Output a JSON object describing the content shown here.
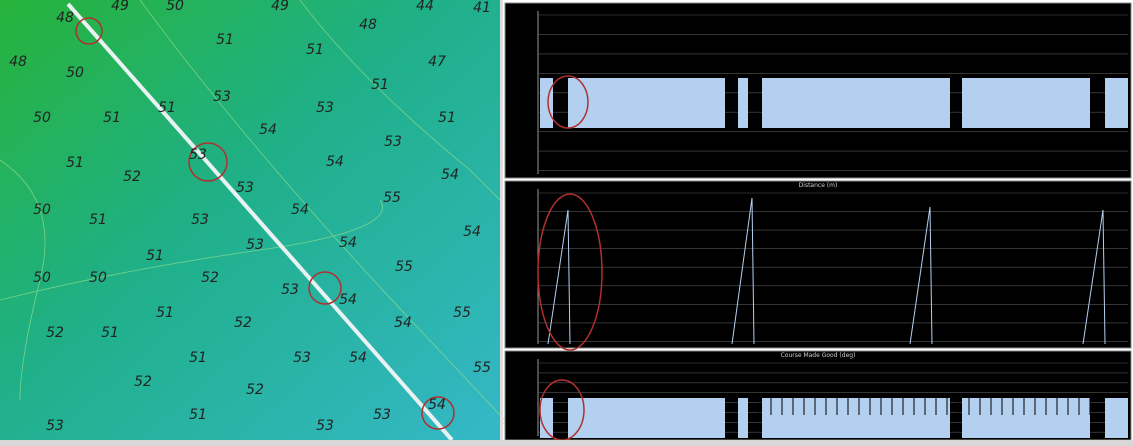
{
  "map": {
    "soundings": [
      "48",
      "49",
      "50",
      "49",
      "48",
      "44",
      "41",
      "48",
      "50",
      "51",
      "51",
      "47",
      "51",
      "53",
      "51",
      "53",
      "51",
      "50",
      "51",
      "54",
      "53",
      "53",
      "51",
      "52",
      "54",
      "54",
      "53",
      "55",
      "50",
      "51",
      "53",
      "54",
      "54",
      "53",
      "54",
      "51",
      "55",
      "50",
      "50",
      "52",
      "53",
      "54",
      "51",
      "55",
      "52",
      "54",
      "52",
      "51",
      "51",
      "53",
      "54",
      "52",
      "52",
      "55",
      "53",
      "54",
      "51",
      "53",
      "53"
    ]
  },
  "panels": {
    "distance": {
      "title": "Distance (m)"
    },
    "course": {
      "title": "Course Made Good (deg)"
    }
  }
}
